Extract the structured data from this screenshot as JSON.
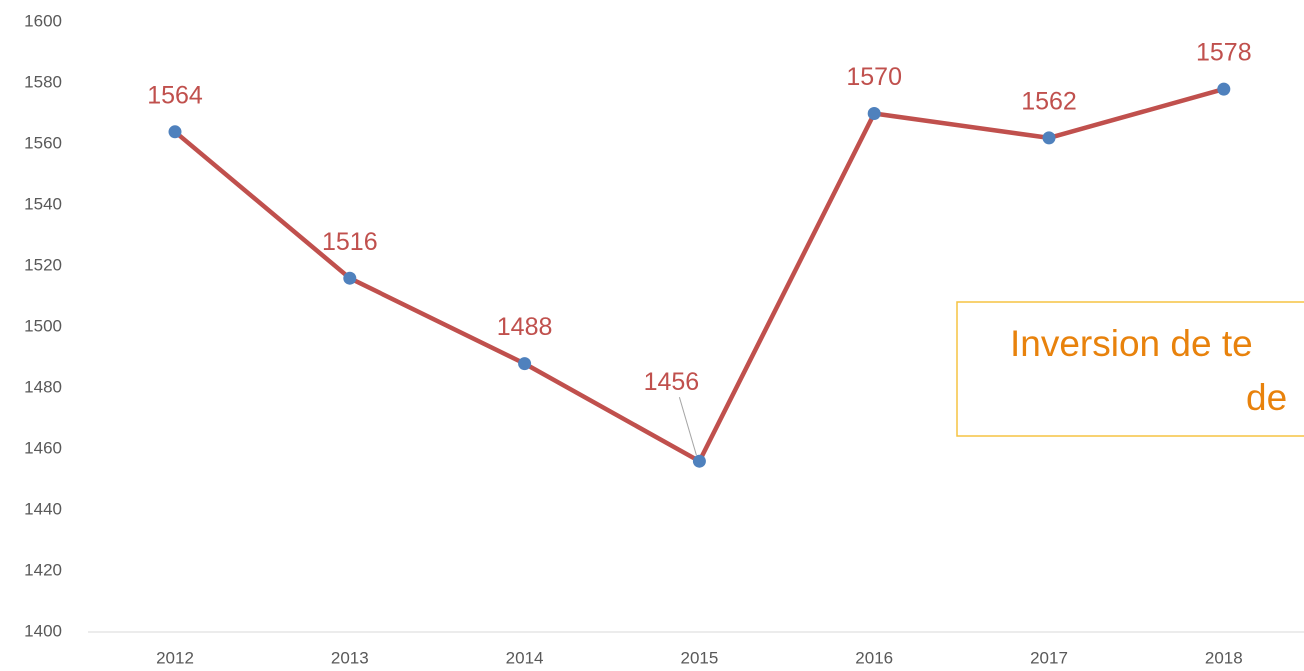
{
  "chart_data": {
    "type": "line",
    "categories": [
      "2012",
      "2013",
      "2014",
      "2015",
      "2016",
      "2017",
      "2018"
    ],
    "series": [
      {
        "color": "#c0504d",
        "marker_color": "#4f81bd",
        "values": [
          1564,
          1516,
          1488,
          1456,
          1570,
          1562,
          1578
        ]
      }
    ],
    "ylim": [
      1400,
      1600
    ],
    "yticks": [
      1400,
      1420,
      1440,
      1460,
      1480,
      1500,
      1520,
      1540,
      1560,
      1580,
      1600
    ],
    "grid": false,
    "annotation": {
      "lines": [
        "Inversion de te",
        "de"
      ],
      "color": "#e8820c",
      "border": "#f5c342"
    }
  }
}
